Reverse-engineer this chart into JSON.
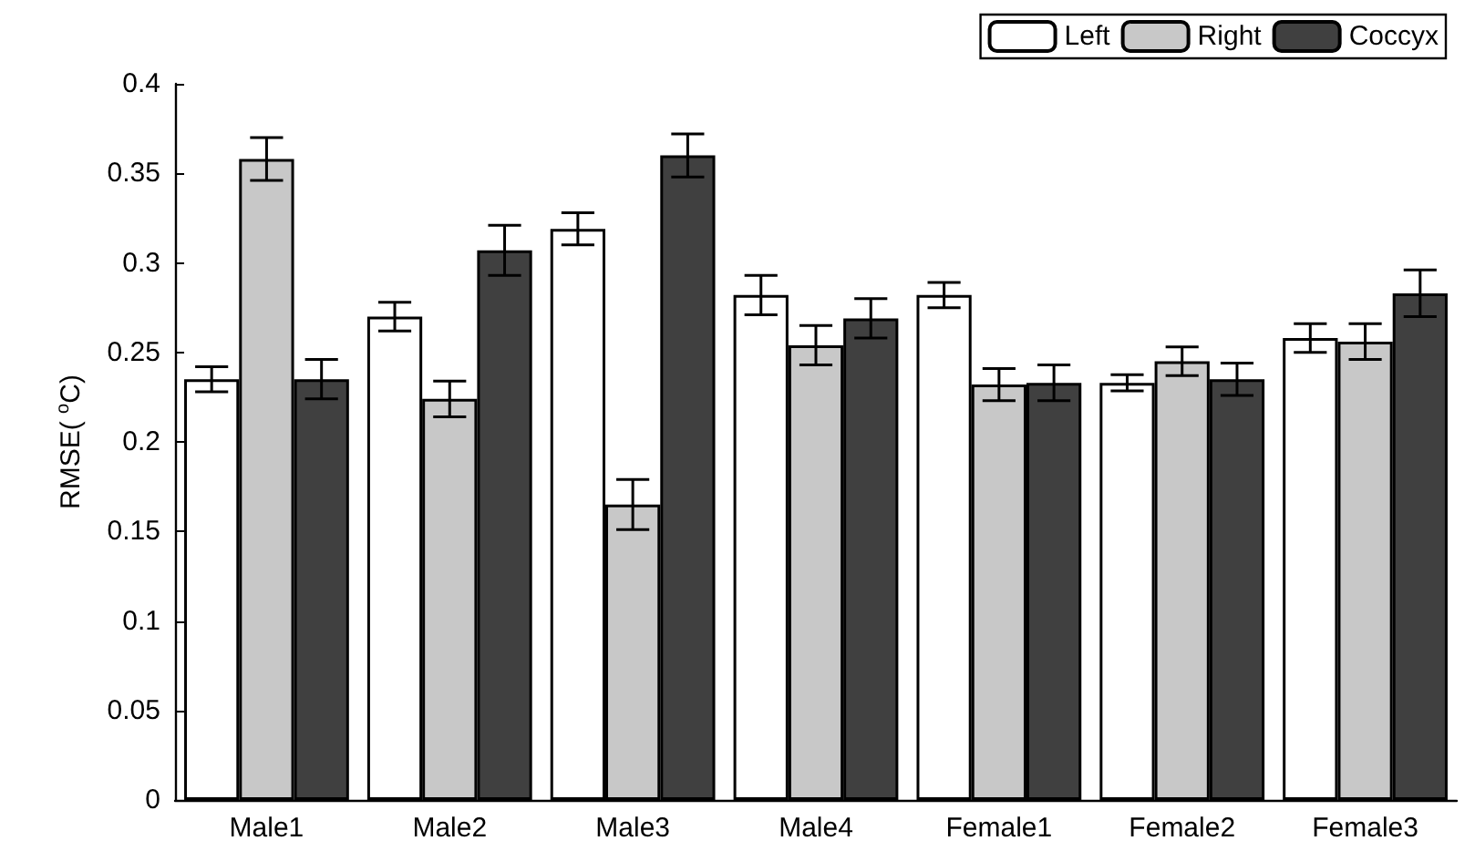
{
  "chart_data": {
    "type": "bar",
    "ylabel": "RMSE( $^{o}$C)",
    "categories": [
      "Male1",
      "Male2",
      "Male3",
      "Male4",
      "Female1",
      "Female2",
      "Female3"
    ],
    "series": [
      {
        "name": "Left",
        "color": "#ffffff",
        "values": [
          0.235,
          0.27,
          0.319,
          0.282,
          0.282,
          0.233,
          0.258
        ],
        "errors": [
          0.007,
          0.008,
          0.009,
          0.011,
          0.007,
          0.0045,
          0.008
        ]
      },
      {
        "name": "Right",
        "color": "#c8c8c8",
        "values": [
          0.358,
          0.224,
          0.165,
          0.254,
          0.232,
          0.245,
          0.256
        ],
        "errors": [
          0.012,
          0.01,
          0.014,
          0.011,
          0.009,
          0.008,
          0.01
        ]
      },
      {
        "name": "Coccyx",
        "color": "#404040",
        "values": [
          0.235,
          0.307,
          0.36,
          0.269,
          0.233,
          0.235,
          0.283
        ],
        "errors": [
          0.011,
          0.014,
          0.012,
          0.011,
          0.01,
          0.009,
          0.013
        ]
      }
    ],
    "ylim": [
      0,
      0.4
    ],
    "yticks": [
      0,
      0.05,
      0.1,
      0.15,
      0.2,
      0.25,
      0.3,
      0.35,
      0.4
    ],
    "grid": false,
    "legend": "top right"
  }
}
